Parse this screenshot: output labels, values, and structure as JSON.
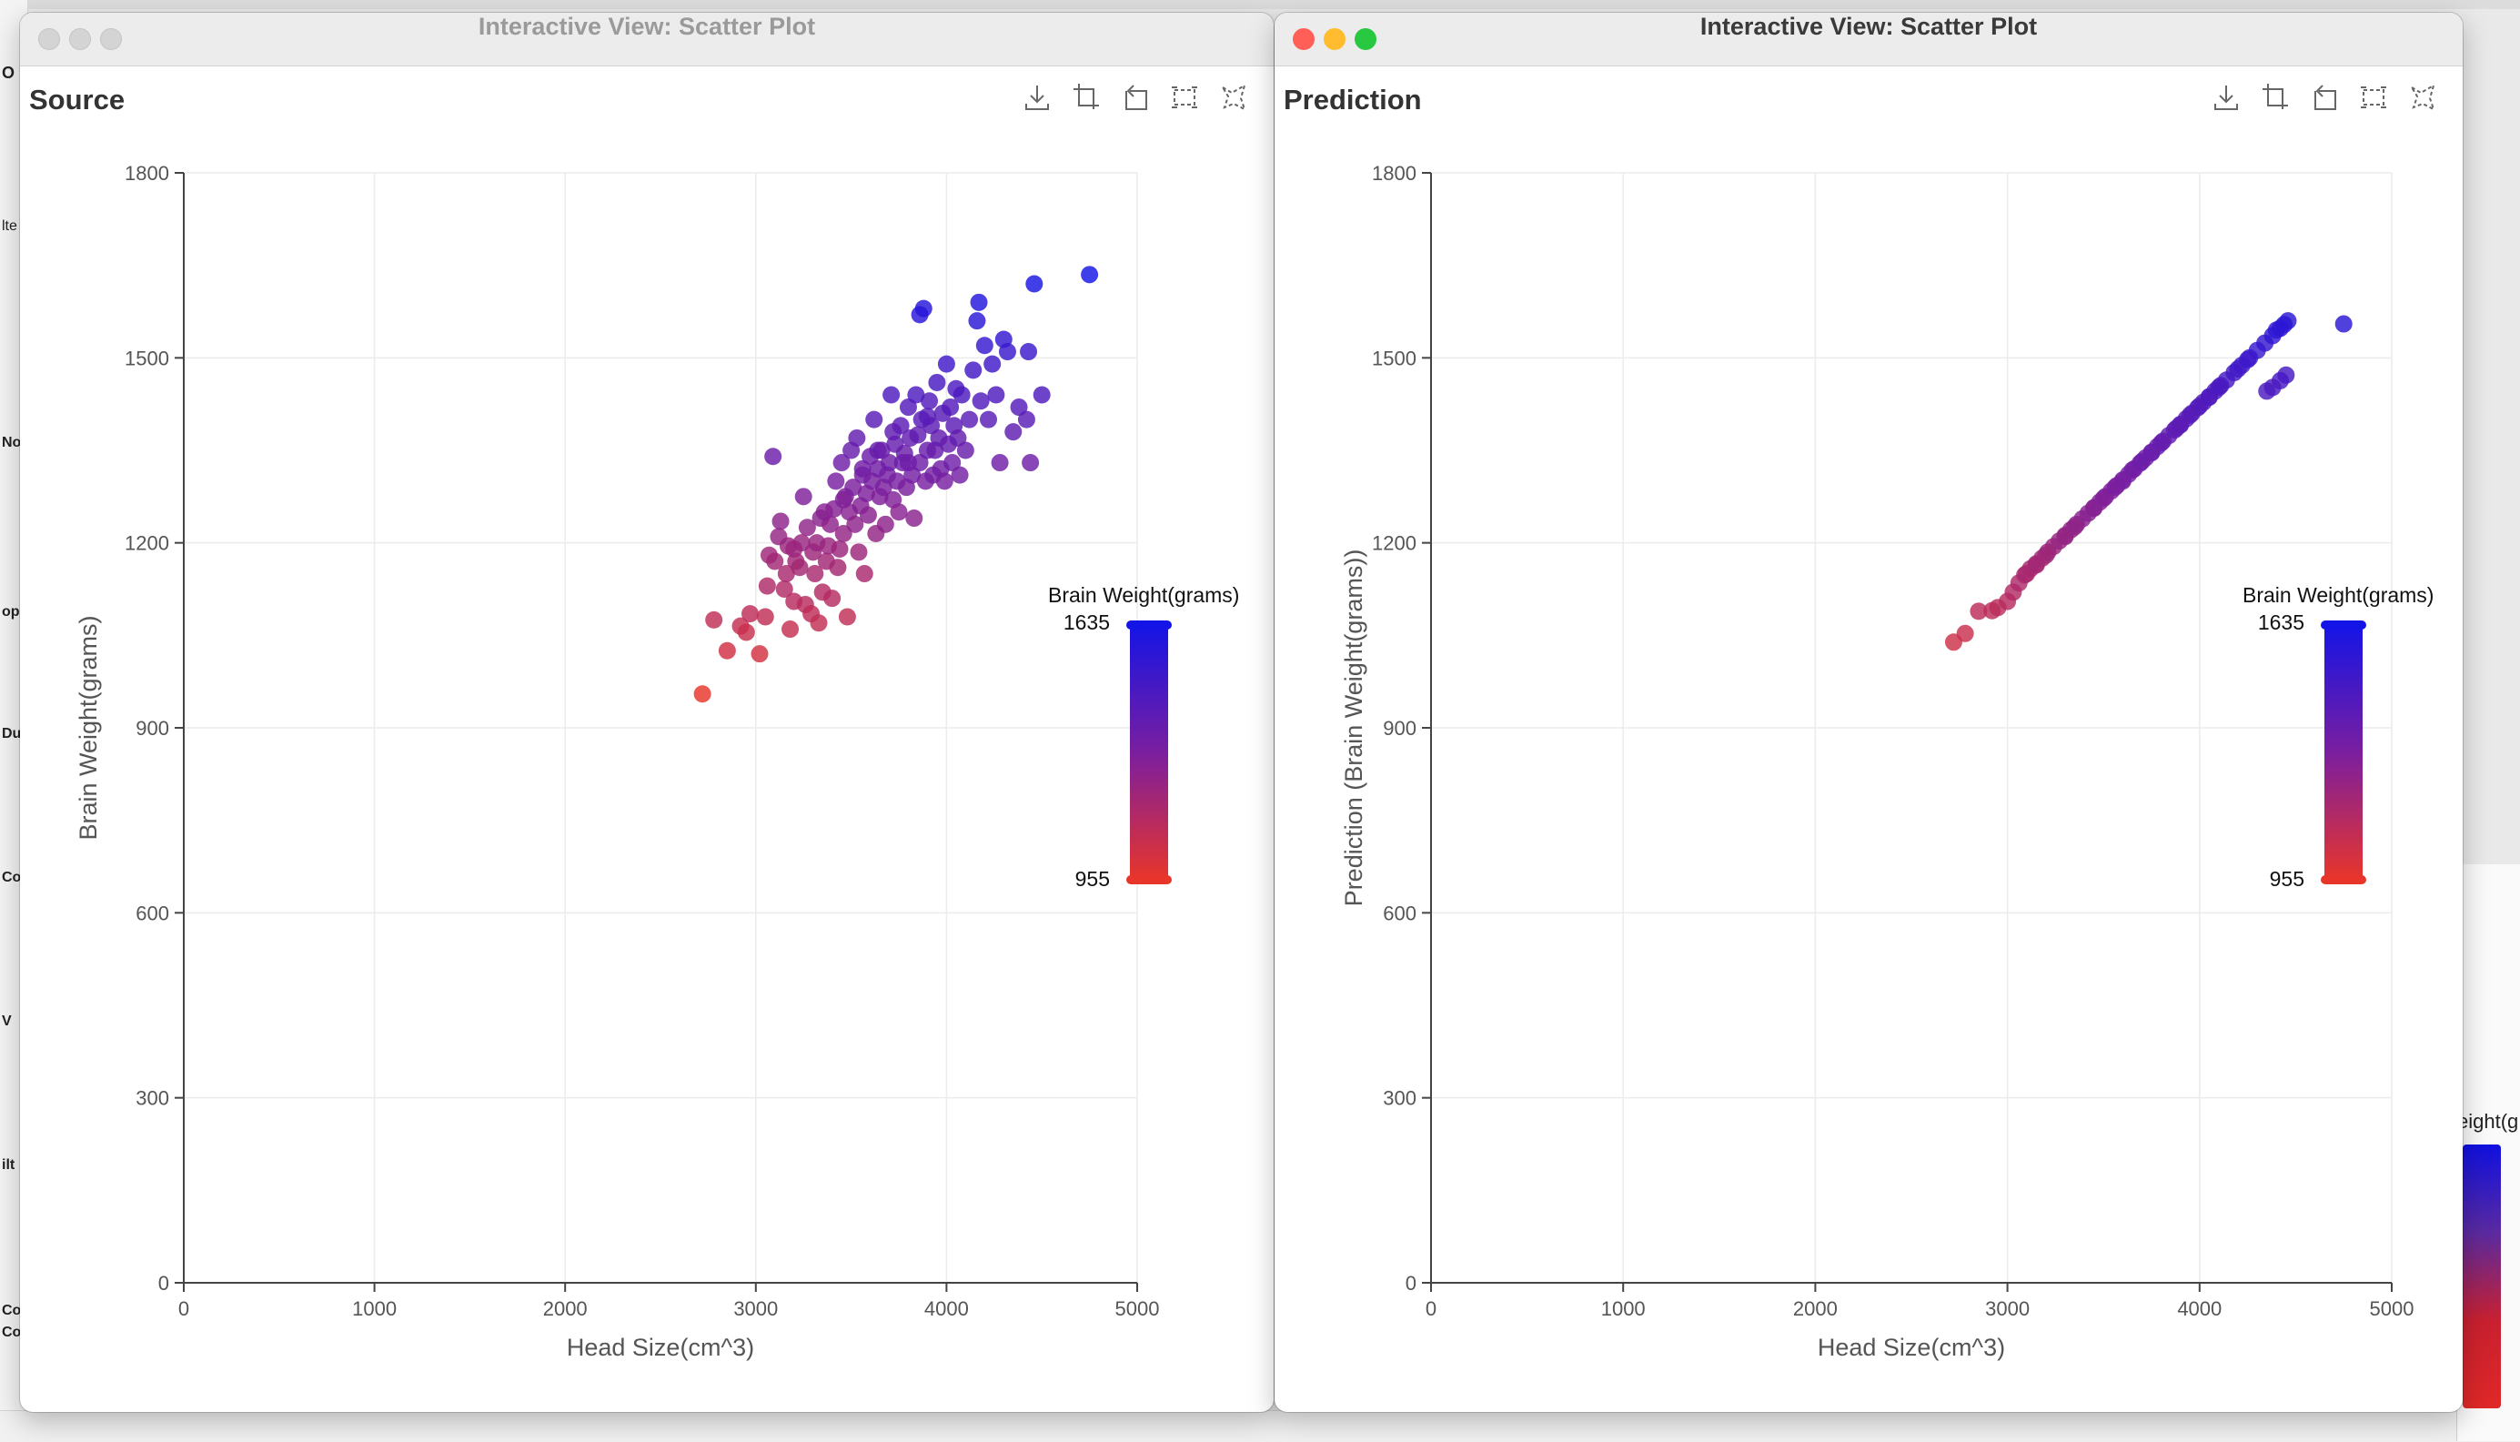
{
  "background": {
    "left_strip_fragments": [
      "O",
      "lte",
      "No",
      "op",
      "Du",
      "Co",
      "V",
      "ilt",
      "Co",
      "Co"
    ],
    "right_legend_fragment": "eight(g"
  },
  "windows": [
    {
      "id": "left",
      "window_title": "Interactive View: Scatter Plot",
      "view_title": "Source",
      "toolbar_icons": [
        "download-icon",
        "crop-icon",
        "rotate-icon",
        "select-area-icon",
        "lasso-icon"
      ],
      "active": false
    },
    {
      "id": "right",
      "window_title": "Interactive View: Scatter Plot",
      "view_title": "Prediction",
      "toolbar_icons": [
        "download-icon",
        "crop-icon",
        "rotate-icon",
        "select-area-icon",
        "lasso-icon"
      ],
      "active": true
    }
  ],
  "chart_data": [
    {
      "type": "scatter",
      "title": "Source",
      "xlabel": "Head Size(cm^3)",
      "ylabel": "Brain Weight(grams)",
      "xlim": [
        0,
        5000
      ],
      "ylim": [
        0,
        1800
      ],
      "xticks": [
        0,
        1000,
        2000,
        3000,
        4000,
        5000
      ],
      "yticks": [
        0,
        300,
        600,
        900,
        1200,
        1500,
        1800
      ],
      "grid": true,
      "legend": {
        "title": "Brain Weight(grams)",
        "max": 1635,
        "min": 955,
        "placement": "right",
        "color_high": "#1414e6",
        "color_low": "#e8352b"
      },
      "points": [
        [
          2720,
          955
        ],
        [
          2780,
          1075
        ],
        [
          2850,
          1025
        ],
        [
          2920,
          1065
        ],
        [
          2950,
          1055
        ],
        [
          2970,
          1085
        ],
        [
          3020,
          1020
        ],
        [
          3050,
          1080
        ],
        [
          3060,
          1130
        ],
        [
          3070,
          1180
        ],
        [
          3090,
          1340
        ],
        [
          3100,
          1170
        ],
        [
          3120,
          1210
        ],
        [
          3130,
          1235
        ],
        [
          3150,
          1125
        ],
        [
          3160,
          1150
        ],
        [
          3170,
          1195
        ],
        [
          3180,
          1060
        ],
        [
          3200,
          1105
        ],
        [
          3210,
          1170
        ],
        [
          3230,
          1160
        ],
        [
          3250,
          1275
        ],
        [
          3260,
          1100
        ],
        [
          3270,
          1225
        ],
        [
          3290,
          1085
        ],
        [
          3300,
          1185
        ],
        [
          3310,
          1150
        ],
        [
          3320,
          1200
        ],
        [
          3330,
          1070
        ],
        [
          3340,
          1240
        ],
        [
          3350,
          1120
        ],
        [
          3370,
          1170
        ],
        [
          3380,
          1195
        ],
        [
          3390,
          1230
        ],
        [
          3400,
          1110
        ],
        [
          3410,
          1255
        ],
        [
          3420,
          1300
        ],
        [
          3430,
          1160
        ],
        [
          3440,
          1190
        ],
        [
          3450,
          1330
        ],
        [
          3460,
          1215
        ],
        [
          3470,
          1275
        ],
        [
          3480,
          1080
        ],
        [
          3490,
          1250
        ],
        [
          3500,
          1350
        ],
        [
          3510,
          1290
        ],
        [
          3520,
          1230
        ],
        [
          3530,
          1370
        ],
        [
          3540,
          1185
        ],
        [
          3550,
          1260
        ],
        [
          3560,
          1310
        ],
        [
          3570,
          1150
        ],
        [
          3580,
          1280
        ],
        [
          3590,
          1245
        ],
        [
          3600,
          1340
        ],
        [
          3610,
          1300
        ],
        [
          3620,
          1400
        ],
        [
          3630,
          1215
        ],
        [
          3640,
          1320
        ],
        [
          3650,
          1275
        ],
        [
          3660,
          1350
        ],
        [
          3670,
          1290
        ],
        [
          3680,
          1230
        ],
        [
          3690,
          1310
        ],
        [
          3700,
          1330
        ],
        [
          3710,
          1440
        ],
        [
          3720,
          1270
        ],
        [
          3730,
          1360
        ],
        [
          3740,
          1300
        ],
        [
          3750,
          1250
        ],
        [
          3760,
          1390
        ],
        [
          3770,
          1330
        ],
        [
          3780,
          1345
        ],
        [
          3790,
          1290
        ],
        [
          3800,
          1420
        ],
        [
          3810,
          1370
        ],
        [
          3820,
          1310
        ],
        [
          3830,
          1240
        ],
        [
          3840,
          1440
        ],
        [
          3850,
          1375
        ],
        [
          3860,
          1330
        ],
        [
          3870,
          1400
        ],
        [
          3880,
          1580
        ],
        [
          3890,
          1300
        ],
        [
          3900,
          1350
        ],
        [
          3910,
          1430
        ],
        [
          3920,
          1390
        ],
        [
          3930,
          1310
        ],
        [
          3940,
          1350
        ],
        [
          3950,
          1460
        ],
        [
          3960,
          1370
        ],
        [
          3970,
          1320
        ],
        [
          3980,
          1410
        ],
        [
          3990,
          1300
        ],
        [
          4000,
          1490
        ],
        [
          4010,
          1360
        ],
        [
          4020,
          1420
        ],
        [
          4030,
          1330
        ],
        [
          4040,
          1390
        ],
        [
          4050,
          1450
        ],
        [
          4060,
          1370
        ],
        [
          4070,
          1310
        ],
        [
          4080,
          1440
        ],
        [
          4100,
          1350
        ],
        [
          4120,
          1400
        ],
        [
          4140,
          1480
        ],
        [
          4160,
          1560
        ],
        [
          4170,
          1590
        ],
        [
          4180,
          1430
        ],
        [
          4200,
          1520
        ],
        [
          4220,
          1400
        ],
        [
          4240,
          1490
        ],
        [
          4260,
          1440
        ],
        [
          4280,
          1330
        ],
        [
          4300,
          1530
        ],
        [
          4320,
          1510
        ],
        [
          4350,
          1380
        ],
        [
          4380,
          1420
        ],
        [
          4420,
          1400
        ],
        [
          4430,
          1510
        ],
        [
          4440,
          1330
        ],
        [
          4460,
          1620
        ],
        [
          4500,
          1440
        ],
        [
          4750,
          1635
        ],
        [
          3860,
          1570
        ],
        [
          3640,
          1350
        ],
        [
          3560,
          1320
        ],
        [
          3460,
          1270
        ],
        [
          3360,
          1250
        ],
        [
          3240,
          1200
        ],
        [
          3200,
          1190
        ],
        [
          3720,
          1380
        ],
        [
          3900,
          1405
        ],
        [
          3800,
          1330
        ]
      ]
    },
    {
      "type": "scatter",
      "title": "Prediction",
      "xlabel": "Head Size(cm^3)",
      "ylabel": "Prediction (Brain Weight(grams))",
      "xlim": [
        0,
        5000
      ],
      "ylim": [
        0,
        1800
      ],
      "xticks": [
        0,
        1000,
        2000,
        3000,
        4000,
        5000
      ],
      "yticks": [
        0,
        300,
        600,
        900,
        1200,
        1500,
        1800
      ],
      "grid": true,
      "legend": {
        "title": "Brain Weight(grams)",
        "max": 1635,
        "min": 955,
        "placement": "right",
        "color_high": "#1414e6",
        "color_low": "#e8352b"
      },
      "points": [
        [
          2720,
          1039
        ],
        [
          2780,
          1053
        ],
        [
          2850,
          1089
        ],
        [
          2920,
          1090
        ],
        [
          2950,
          1095
        ],
        [
          3000,
          1105
        ],
        [
          3030,
          1120
        ],
        [
          3060,
          1135
        ],
        [
          3090,
          1148
        ],
        [
          3120,
          1158
        ],
        [
          3150,
          1166
        ],
        [
          3180,
          1175
        ],
        [
          3210,
          1185
        ],
        [
          3240,
          1194
        ],
        [
          3270,
          1203
        ],
        [
          3300,
          1212
        ],
        [
          3330,
          1221
        ],
        [
          3360,
          1230
        ],
        [
          3390,
          1239
        ],
        [
          3420,
          1248
        ],
        [
          3450,
          1257
        ],
        [
          3480,
          1266
        ],
        [
          3510,
          1275
        ],
        [
          3540,
          1284
        ],
        [
          3570,
          1293
        ],
        [
          3600,
          1302
        ],
        [
          3630,
          1311
        ],
        [
          3660,
          1320
        ],
        [
          3690,
          1329
        ],
        [
          3720,
          1338
        ],
        [
          3750,
          1347
        ],
        [
          3780,
          1356
        ],
        [
          3810,
          1365
        ],
        [
          3840,
          1374
        ],
        [
          3870,
          1383
        ],
        [
          3900,
          1392
        ],
        [
          3930,
          1401
        ],
        [
          3960,
          1410
        ],
        [
          3990,
          1419
        ],
        [
          4020,
          1428
        ],
        [
          4050,
          1437
        ],
        [
          4080,
          1446
        ],
        [
          4110,
          1455
        ],
        [
          4140,
          1464
        ],
        [
          4180,
          1476
        ],
        [
          4220,
          1488
        ],
        [
          4260,
          1500
        ],
        [
          4300,
          1512
        ],
        [
          4340,
          1524
        ],
        [
          4380,
          1536
        ],
        [
          4420,
          1548
        ],
        [
          4460,
          1560
        ],
        [
          4750,
          1555
        ],
        [
          3200,
          1180
        ],
        [
          3350,
          1226
        ],
        [
          3500,
          1272
        ],
        [
          3650,
          1318
        ],
        [
          3800,
          1362
        ],
        [
          3950,
          1407
        ],
        [
          4100,
          1452
        ],
        [
          3100,
          1150
        ],
        [
          3560,
          1290
        ],
        [
          3700,
          1332
        ],
        [
          3880,
          1386
        ],
        [
          4000,
          1422
        ],
        [
          4200,
          1482
        ],
        [
          3150,
          1164
        ],
        [
          3300,
          1210
        ],
        [
          3450,
          1256
        ],
        [
          3600,
          1300
        ],
        [
          3750,
          1346
        ],
        [
          3900,
          1391
        ],
        [
          4050,
          1436
        ],
        [
          4250,
          1497
        ],
        [
          4400,
          1545
        ],
        [
          4440,
          1554
        ],
        [
          4450,
          1472
        ],
        [
          4420,
          1463
        ],
        [
          4380,
          1452
        ],
        [
          4350,
          1446
        ]
      ]
    }
  ]
}
